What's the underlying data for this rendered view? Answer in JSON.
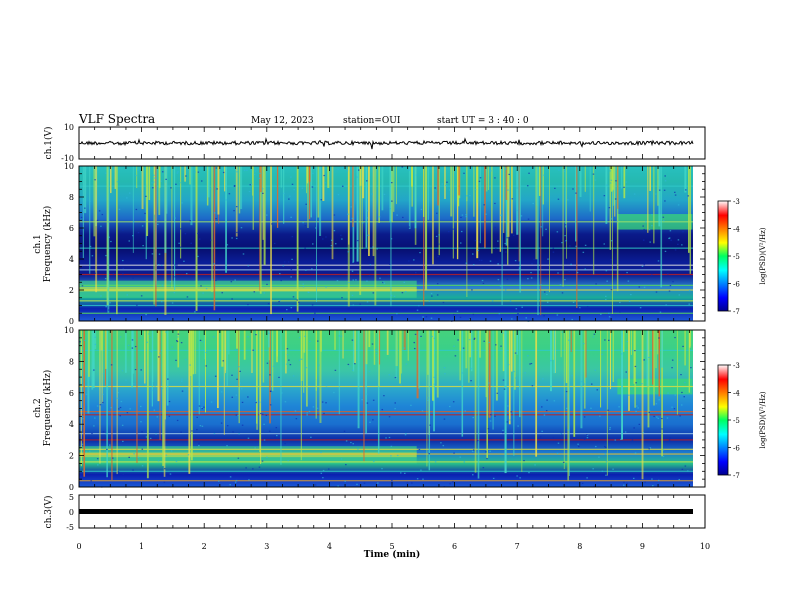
{
  "header": {
    "title": "VLF Spectra",
    "date": "May 12, 2023",
    "station": "station=OUI",
    "start_ut": "start  UT =  3 : 40 : 0"
  },
  "chart_data": [
    {
      "type": "line",
      "ylabel": "ch.1(V)",
      "ylim": [
        -10,
        10
      ],
      "y_ticks": [
        "10",
        "-10"
      ],
      "xlim": [
        0,
        10
      ]
    },
    {
      "type": "heatmap",
      "ylabel": "ch.1\nFrequency (kHz)",
      "ylim": [
        0,
        10
      ],
      "y_ticks": [
        "0",
        "2",
        "4",
        "6",
        "8",
        "10"
      ],
      "xlim": [
        0,
        10
      ],
      "colorbar": {
        "label": "log(PSD)(V²/Hz)",
        "range": [
          -7,
          -3
        ],
        "ticks": [
          "-3",
          "-4",
          "-5",
          "-6",
          "-7"
        ]
      }
    },
    {
      "type": "heatmap",
      "ylabel": "ch.2\nFrequency (kHz)",
      "ylim": [
        0,
        10
      ],
      "y_ticks": [
        "0",
        "2",
        "4",
        "6",
        "8",
        "10"
      ],
      "xlim": [
        0,
        10
      ],
      "colorbar": {
        "label": "log(PSD)(V²/Hz)",
        "range": [
          -7,
          -3
        ],
        "ticks": [
          "-3",
          "-4",
          "-5",
          "-6",
          "-7"
        ]
      }
    },
    {
      "type": "line",
      "ylabel": "ch.3(V)",
      "ylim": [
        -5,
        5
      ],
      "y_ticks": [
        "5",
        "0",
        "-5"
      ],
      "xlim": [
        0,
        10
      ],
      "xlabel": "Time (min)",
      "x_ticks": [
        "0",
        "1",
        "2",
        "3",
        "4",
        "5",
        "6",
        "7",
        "8",
        "9",
        "10"
      ]
    }
  ]
}
